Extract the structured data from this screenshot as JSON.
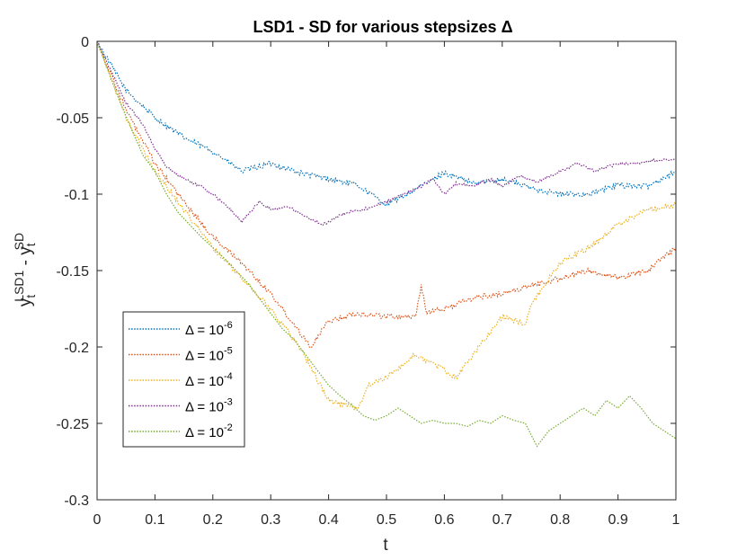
{
  "chart_data": {
    "type": "line",
    "title": "LSD1 - SD for various stepsizes Δ",
    "xlabel": "t",
    "ylabel": {
      "base": "y",
      "sub": "t",
      "sup1": "LSD1",
      "minus": " - ",
      "sup2": "SD"
    },
    "xlim": [
      0,
      1
    ],
    "ylim": [
      -0.3,
      0
    ],
    "xticks": [
      0,
      0.1,
      0.2,
      0.3,
      0.4,
      0.5,
      0.6,
      0.7,
      0.8,
      0.9,
      1
    ],
    "xtick_labels": [
      "0",
      "0.1",
      "0.2",
      "0.3",
      "0.4",
      "0.5",
      "0.6",
      "0.7",
      "0.8",
      "0.9",
      "1"
    ],
    "yticks": [
      0,
      -0.05,
      -0.1,
      -0.15,
      -0.2,
      -0.25,
      -0.3
    ],
    "ytick_labels": [
      "0",
      "-0.05",
      "-0.1",
      "-0.15",
      "-0.2",
      "-0.25",
      "-0.3"
    ],
    "legend_position": "lower-left",
    "series": [
      {
        "name": "Δ = 10^-6",
        "label_base": "Δ = 10",
        "label_exp": "-6",
        "color": "#0072BD",
        "roughness": 1.0,
        "x": [
          0,
          0.05,
          0.1,
          0.15,
          0.2,
          0.25,
          0.3,
          0.35,
          0.4,
          0.45,
          0.5,
          0.55,
          0.6,
          0.65,
          0.7,
          0.75,
          0.8,
          0.85,
          0.9,
          0.95,
          1.0
        ],
        "y": [
          0,
          -0.032,
          -0.05,
          -0.063,
          -0.072,
          -0.085,
          -0.08,
          -0.086,
          -0.09,
          -0.094,
          -0.107,
          -0.097,
          -0.086,
          -0.093,
          -0.09,
          -0.096,
          -0.1,
          -0.1,
          -0.094,
          -0.095,
          -0.085
        ]
      },
      {
        "name": "Δ = 10^-5",
        "label_base": "Δ = 10",
        "label_exp": "-5",
        "color": "#D95319",
        "roughness": 1.0,
        "x": [
          0,
          0.05,
          0.1,
          0.15,
          0.2,
          0.25,
          0.3,
          0.35,
          0.37,
          0.4,
          0.45,
          0.5,
          0.55,
          0.56,
          0.57,
          0.6,
          0.65,
          0.7,
          0.75,
          0.8,
          0.85,
          0.9,
          0.95,
          1.0
        ],
        "y": [
          0,
          -0.045,
          -0.08,
          -0.105,
          -0.128,
          -0.145,
          -0.165,
          -0.19,
          -0.2,
          -0.183,
          -0.178,
          -0.18,
          -0.18,
          -0.16,
          -0.178,
          -0.175,
          -0.168,
          -0.165,
          -0.16,
          -0.155,
          -0.15,
          -0.155,
          -0.15,
          -0.135
        ]
      },
      {
        "name": "Δ = 10^-4",
        "label_base": "Δ = 10",
        "label_exp": "-4",
        "color": "#EDB120",
        "roughness": 1.0,
        "x": [
          0,
          0.05,
          0.1,
          0.15,
          0.2,
          0.25,
          0.3,
          0.35,
          0.4,
          0.45,
          0.47,
          0.5,
          0.55,
          0.6,
          0.62,
          0.65,
          0.7,
          0.74,
          0.75,
          0.8,
          0.85,
          0.9,
          0.95,
          1.0
        ],
        "y": [
          0,
          -0.05,
          -0.085,
          -0.11,
          -0.135,
          -0.155,
          -0.175,
          -0.2,
          -0.235,
          -0.24,
          -0.225,
          -0.22,
          -0.205,
          -0.215,
          -0.22,
          -0.205,
          -0.18,
          -0.185,
          -0.172,
          -0.145,
          -0.135,
          -0.12,
          -0.11,
          -0.107
        ]
      },
      {
        "name": "Δ = 10^-3",
        "label_base": "Δ = 10",
        "label_exp": "-3",
        "color": "#7E2F8E",
        "roughness": 0.5,
        "x": [
          0,
          0.05,
          0.08,
          0.1,
          0.12,
          0.15,
          0.18,
          0.2,
          0.23,
          0.25,
          0.28,
          0.3,
          0.33,
          0.36,
          0.39,
          0.4,
          0.43,
          0.46,
          0.5,
          0.53,
          0.56,
          0.58,
          0.6,
          0.62,
          0.65,
          0.68,
          0.7,
          0.73,
          0.76,
          0.8,
          0.83,
          0.86,
          0.9,
          0.93,
          0.96,
          1.0
        ],
        "y": [
          0,
          -0.04,
          -0.055,
          -0.07,
          -0.082,
          -0.09,
          -0.095,
          -0.1,
          -0.11,
          -0.118,
          -0.105,
          -0.11,
          -0.108,
          -0.115,
          -0.12,
          -0.118,
          -0.112,
          -0.11,
          -0.105,
          -0.1,
          -0.095,
          -0.09,
          -0.1,
          -0.093,
          -0.095,
          -0.09,
          -0.095,
          -0.088,
          -0.092,
          -0.085,
          -0.08,
          -0.085,
          -0.08,
          -0.08,
          -0.078,
          -0.077
        ]
      },
      {
        "name": "Δ = 10^-2",
        "label_base": "Δ = 10",
        "label_exp": "-2",
        "color": "#77AC30",
        "roughness": 0.0,
        "x": [
          0,
          0.02,
          0.04,
          0.06,
          0.08,
          0.1,
          0.12,
          0.14,
          0.16,
          0.18,
          0.2,
          0.22,
          0.24,
          0.26,
          0.28,
          0.3,
          0.32,
          0.34,
          0.36,
          0.38,
          0.4,
          0.42,
          0.44,
          0.46,
          0.48,
          0.5,
          0.52,
          0.54,
          0.56,
          0.58,
          0.6,
          0.62,
          0.64,
          0.66,
          0.68,
          0.7,
          0.72,
          0.74,
          0.76,
          0.78,
          0.8,
          0.82,
          0.84,
          0.86,
          0.88,
          0.9,
          0.92,
          0.94,
          0.96,
          0.98,
          1.0
        ],
        "y": [
          0,
          -0.02,
          -0.04,
          -0.058,
          -0.075,
          -0.085,
          -0.1,
          -0.112,
          -0.12,
          -0.128,
          -0.135,
          -0.142,
          -0.15,
          -0.158,
          -0.168,
          -0.178,
          -0.188,
          -0.195,
          -0.205,
          -0.215,
          -0.225,
          -0.232,
          -0.238,
          -0.245,
          -0.248,
          -0.245,
          -0.24,
          -0.245,
          -0.25,
          -0.248,
          -0.25,
          -0.25,
          -0.252,
          -0.248,
          -0.25,
          -0.245,
          -0.248,
          -0.25,
          -0.265,
          -0.255,
          -0.25,
          -0.245,
          -0.24,
          -0.245,
          -0.235,
          -0.24,
          -0.232,
          -0.24,
          -0.25,
          -0.255,
          -0.26
        ]
      }
    ]
  }
}
